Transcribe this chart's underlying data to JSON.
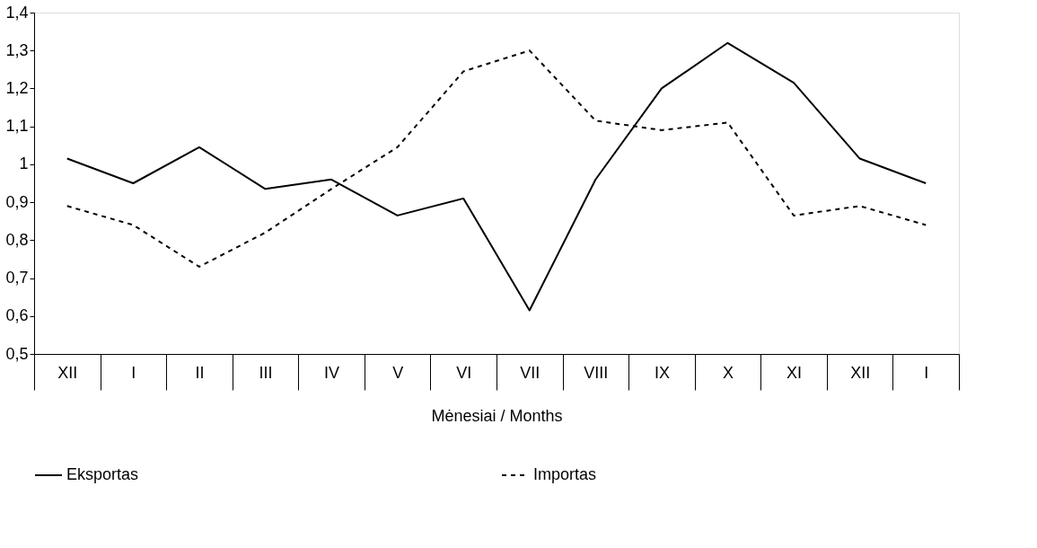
{
  "chart_data": {
    "type": "line",
    "xlabel": "Mėnesiai / Months",
    "categories": [
      "XII",
      "I",
      "II",
      "III",
      "IV",
      "V",
      "VI",
      "VII",
      "VIII",
      "IX",
      "X",
      "XI",
      "XII",
      "I"
    ],
    "series": [
      {
        "name": "Eksportas",
        "color": "#000000",
        "line_style": "solid",
        "values": [
          1.015,
          0.95,
          1.045,
          0.935,
          0.96,
          0.865,
          0.91,
          0.615,
          0.96,
          1.2,
          1.32,
          1.215,
          1.015,
          0.95
        ]
      },
      {
        "name": "Importas",
        "color": "#000000",
        "line_style": "dashed",
        "values": [
          0.89,
          0.84,
          0.73,
          0.82,
          0.935,
          1.045,
          1.245,
          1.3,
          1.115,
          1.09,
          1.11,
          0.865,
          0.89,
          0.84
        ]
      }
    ],
    "ylim": [
      0.5,
      1.4
    ],
    "yticks": [
      {
        "value": 0.5,
        "label": "0,5"
      },
      {
        "value": 0.6,
        "label": "0,6"
      },
      {
        "value": 0.7,
        "label": "0,7"
      },
      {
        "value": 0.8,
        "label": "0,8"
      },
      {
        "value": 0.9,
        "label": "0,9"
      },
      {
        "value": 1,
        "label": "1"
      },
      {
        "value": 1.1,
        "label": "1,1"
      },
      {
        "value": 1.2,
        "label": "1,2"
      },
      {
        "value": 1.3,
        "label": "1,3"
      },
      {
        "value": 1.4,
        "label": "1,4"
      }
    ],
    "grid": false,
    "legend": "bottom",
    "marker": "none"
  }
}
